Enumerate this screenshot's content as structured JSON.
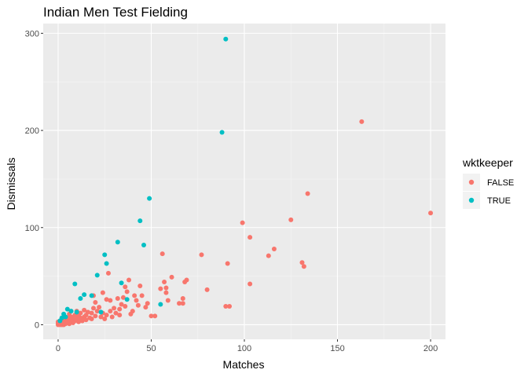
{
  "chart_data": {
    "type": "scatter",
    "title": "Indian Men Test Fielding",
    "xlabel": "Matches",
    "ylabel": "Dismissals",
    "xlim": [
      -8,
      208
    ],
    "ylim": [
      -15,
      310
    ],
    "x_ticks": [
      0,
      50,
      100,
      150,
      200
    ],
    "y_ticks": [
      0,
      100,
      200,
      300
    ],
    "grid": true,
    "legend": {
      "title": "wktkeeper",
      "placement": "right",
      "entries": [
        {
          "label": "FALSE",
          "color": "#F8766D"
        },
        {
          "label": "TRUE",
          "color": "#00BFC4"
        }
      ]
    },
    "series": [
      {
        "label": "FALSE",
        "color": "#F8766D",
        "points": [
          [
            200,
            115
          ],
          [
            163,
            209
          ],
          [
            134,
            135
          ],
          [
            125,
            108
          ],
          [
            132,
            60
          ],
          [
            131,
            64
          ],
          [
            116,
            78
          ],
          [
            113,
            71
          ],
          [
            103,
            90
          ],
          [
            103,
            42
          ],
          [
            99,
            105
          ],
          [
            92,
            19
          ],
          [
            91,
            63
          ],
          [
            90,
            19
          ],
          [
            80,
            36
          ],
          [
            77,
            72
          ],
          [
            69,
            46
          ],
          [
            68,
            44
          ],
          [
            67,
            27
          ],
          [
            67,
            22
          ],
          [
            65,
            22
          ],
          [
            61,
            49
          ],
          [
            59,
            25
          ],
          [
            58,
            33
          ],
          [
            58,
            38
          ],
          [
            57,
            44
          ],
          [
            56,
            73
          ],
          [
            55,
            37
          ],
          [
            50,
            9
          ],
          [
            48,
            22
          ],
          [
            47,
            18
          ],
          [
            45,
            30
          ],
          [
            44,
            40
          ],
          [
            43,
            20
          ],
          [
            42,
            25
          ],
          [
            41,
            30
          ],
          [
            40,
            14
          ],
          [
            39,
            11
          ],
          [
            38,
            46
          ],
          [
            37,
            34
          ],
          [
            36,
            19
          ],
          [
            35,
            28
          ],
          [
            34,
            21
          ],
          [
            33,
            10
          ],
          [
            33,
            16
          ],
          [
            32,
            27
          ],
          [
            31,
            12
          ],
          [
            30,
            17
          ],
          [
            29,
            8
          ],
          [
            28,
            25
          ],
          [
            28,
            14
          ],
          [
            27,
            53
          ],
          [
            26,
            10
          ],
          [
            26,
            26
          ],
          [
            25,
            6
          ],
          [
            24,
            12
          ],
          [
            24,
            33
          ],
          [
            23,
            8
          ],
          [
            22,
            18
          ],
          [
            21,
            14
          ],
          [
            20,
            9
          ],
          [
            20,
            23
          ],
          [
            19,
            17
          ],
          [
            18,
            6
          ],
          [
            18,
            12
          ],
          [
            17,
            7
          ],
          [
            16,
            13
          ],
          [
            15,
            5
          ],
          [
            15,
            10
          ],
          [
            14,
            8
          ],
          [
            13,
            4
          ],
          [
            12,
            12
          ],
          [
            12,
            7
          ],
          [
            11,
            3
          ],
          [
            11,
            9
          ],
          [
            10,
            6
          ],
          [
            10,
            14
          ],
          [
            9,
            4
          ],
          [
            9,
            10
          ],
          [
            8,
            2
          ],
          [
            8,
            6
          ],
          [
            7,
            3
          ],
          [
            7,
            8
          ],
          [
            6,
            1
          ],
          [
            6,
            5
          ],
          [
            5,
            2
          ],
          [
            5,
            7
          ],
          [
            4,
            1
          ],
          [
            4,
            3
          ],
          [
            3,
            0
          ],
          [
            3,
            2
          ],
          [
            3,
            5
          ],
          [
            2,
            0
          ],
          [
            2,
            1
          ],
          [
            2,
            3
          ],
          [
            1,
            0
          ],
          [
            1,
            1
          ],
          [
            1,
            2
          ],
          [
            1,
            4
          ],
          [
            0,
            0
          ],
          [
            0,
            1
          ],
          [
            0,
            2
          ],
          [
            0,
            3
          ],
          [
            6,
            11
          ],
          [
            14,
            15
          ],
          [
            19,
            30
          ],
          [
            36,
            39
          ],
          [
            52,
            9
          ]
        ]
      },
      {
        "label": "TRUE",
        "color": "#00BFC4",
        "points": [
          [
            90,
            294
          ],
          [
            88,
            198
          ],
          [
            49,
            130
          ],
          [
            44,
            107
          ],
          [
            46,
            82
          ],
          [
            32,
            85
          ],
          [
            25,
            72
          ],
          [
            26,
            63
          ],
          [
            21,
            51
          ],
          [
            34,
            43
          ],
          [
            37,
            26
          ],
          [
            55,
            21
          ],
          [
            9,
            42
          ],
          [
            14,
            31
          ],
          [
            12,
            27
          ],
          [
            18,
            30
          ],
          [
            5,
            16
          ],
          [
            7,
            14
          ],
          [
            3,
            11
          ],
          [
            2,
            7
          ],
          [
            1,
            4
          ],
          [
            4,
            8
          ],
          [
            10,
            13
          ],
          [
            23,
            13
          ]
        ]
      }
    ]
  }
}
